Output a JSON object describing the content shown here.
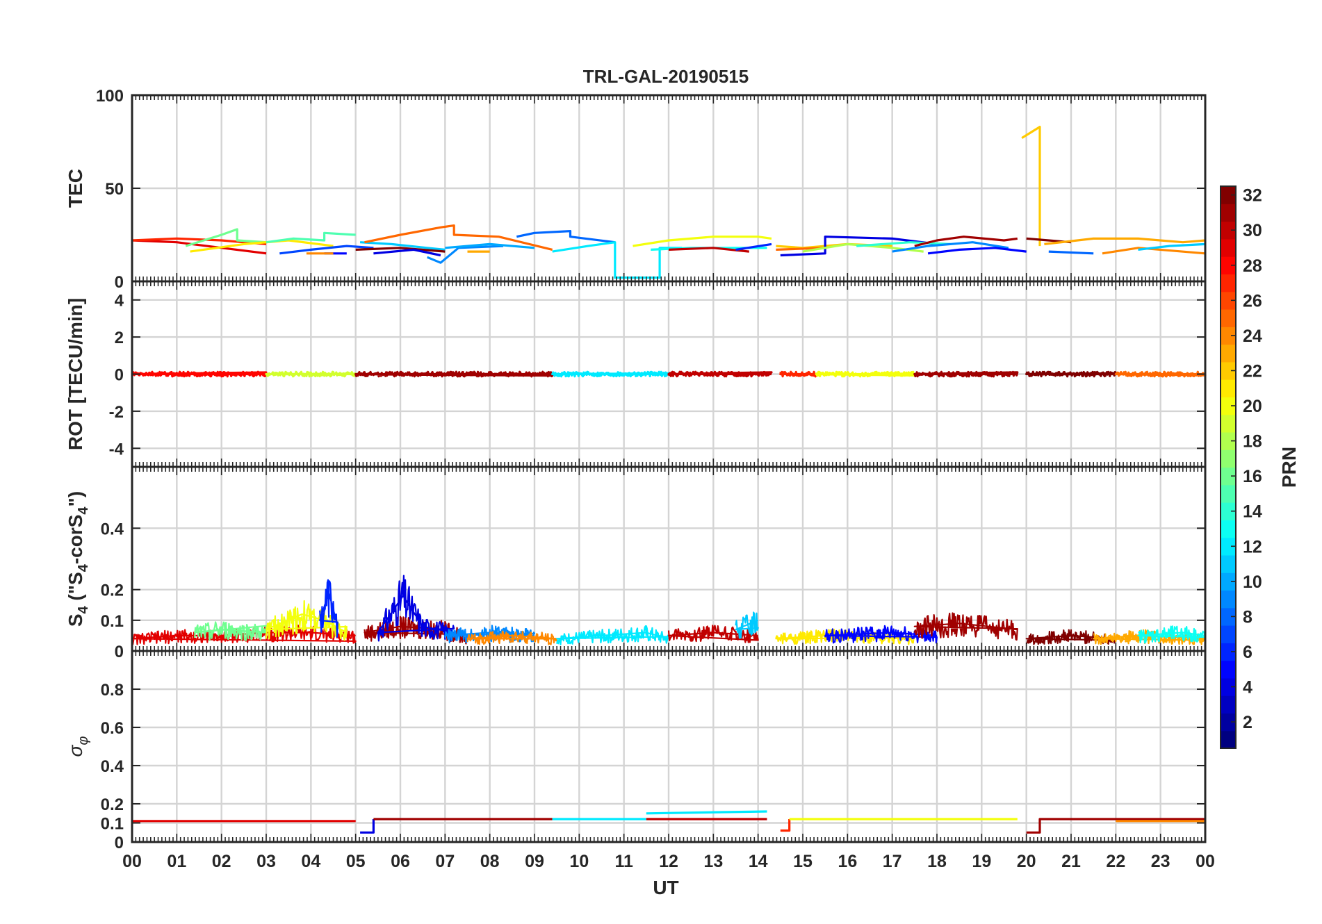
{
  "chart_data": {
    "type": "line",
    "title": "TRL-GAL-20190515",
    "x_axis": {
      "label": "UT",
      "range": [
        0,
        24
      ],
      "tick_labels": [
        "00",
        "01",
        "02",
        "03",
        "04",
        "05",
        "06",
        "07",
        "08",
        "09",
        "10",
        "11",
        "12",
        "13",
        "14",
        "15",
        "16",
        "17",
        "18",
        "19",
        "20",
        "21",
        "22",
        "23",
        "00"
      ],
      "grid": true
    },
    "panels": [
      {
        "ylabel": "TEC",
        "ylim": [
          0,
          100
        ],
        "yticks": [
          0,
          50,
          100
        ],
        "series": [
          {
            "prn": 29,
            "x": [
              0.0,
              1.0,
              3.0
            ],
            "y": [
              22,
              21,
              15
            ]
          },
          {
            "prn": 27,
            "x": [
              0.0,
              1.0,
              2.0,
              3.0
            ],
            "y": [
              22,
              23,
              22,
              20
            ]
          },
          {
            "prn": 16,
            "x": [
              1.2,
              2.0,
              2.35,
              2.35,
              3.0
            ],
            "y": [
              19,
              25,
              28,
              22,
              21
            ]
          },
          {
            "prn": 21,
            "x": [
              1.3,
              2.5,
              3.5,
              4.5
            ],
            "y": [
              16,
              20,
              22,
              19
            ]
          },
          {
            "prn": 15,
            "x": [
              3.0,
              3.6,
              4.3,
              4.3,
              5.0
            ],
            "y": [
              21,
              23,
              22,
              26,
              25
            ]
          },
          {
            "prn": 7,
            "x": [
              3.3,
              4.0,
              4.8,
              5.4
            ],
            "y": [
              15,
              17,
              19,
              18
            ]
          },
          {
            "prn": 5,
            "x": [
              4.3,
              4.8
            ],
            "y": [
              15,
              15
            ]
          },
          {
            "prn": 24,
            "x": [
              3.9,
              4.5
            ],
            "y": [
              15,
              15
            ]
          },
          {
            "prn": 11,
            "x": [
              5.1,
              5.8,
              6.6,
              7.0
            ],
            "y": [
              21,
              20,
              18,
              17
            ]
          },
          {
            "prn": 25,
            "x": [
              5.2,
              6.0,
              6.9,
              7.2,
              7.2,
              8.2,
              9.4
            ],
            "y": [
              21,
              25,
              29,
              30,
              25,
              24,
              17
            ]
          },
          {
            "prn": 32,
            "x": [
              5.0,
              6.0,
              7.0
            ],
            "y": [
              17,
              18,
              16
            ]
          },
          {
            "prn": 4,
            "x": [
              5.4,
              6.3,
              6.9
            ],
            "y": [
              15,
              17,
              14
            ]
          },
          {
            "prn": 9,
            "x": [
              6.6,
              6.9,
              7.3,
              8.3
            ],
            "y": [
              13,
              10,
              18,
              19
            ]
          },
          {
            "prn": 10,
            "x": [
              7.0,
              8.0,
              9.0
            ],
            "y": [
              18,
              20,
              18
            ]
          },
          {
            "prn": 23,
            "x": [
              7.5,
              8.0
            ],
            "y": [
              16,
              16
            ]
          },
          {
            "prn": 8,
            "x": [
              8.6,
              9.0,
              9.8,
              9.8,
              10.8
            ],
            "y": [
              24,
              26,
              27,
              24,
              21
            ]
          },
          {
            "prn": 12,
            "x": [
              9.4,
              10.2,
              10.8,
              10.8,
              11.8,
              11.8,
              12.3
            ],
            "y": [
              16,
              19,
              21,
              2,
              2,
              18,
              18
            ]
          },
          {
            "prn": 20,
            "x": [
              11.2,
              12.0,
              13.0,
              14.0,
              14.3
            ],
            "y": [
              19,
              22,
              24,
              24,
              23
            ]
          },
          {
            "prn": 13,
            "x": [
              11.6,
              12.5,
              13.3,
              14.2
            ],
            "y": [
              17,
              18,
              18,
              18
            ]
          },
          {
            "prn": 30,
            "x": [
              12.0,
              13.0,
              13.8
            ],
            "y": [
              17,
              18,
              16
            ]
          },
          {
            "prn": 6,
            "x": [
              13.5,
              14.3
            ],
            "y": [
              17,
              20
            ]
          },
          {
            "prn": 22,
            "x": [
              14.4,
              15.0,
              16.0,
              17.0
            ],
            "y": [
              19,
              18,
              20,
              19
            ]
          },
          {
            "prn": 25,
            "x": [
              14.4,
              15.5
            ],
            "y": [
              17,
              18
            ]
          },
          {
            "prn": 4,
            "x": [
              14.5,
              15.5,
              15.5,
              17.0,
              18.0
            ],
            "y": [
              14,
              15,
              24,
              23,
              20
            ]
          },
          {
            "prn": 18,
            "x": [
              15.0,
              16.0,
              17.0,
              17.7
            ],
            "y": [
              16,
              20,
              18,
              16
            ]
          },
          {
            "prn": 14,
            "x": [
              16.2,
              17.4,
              18.3
            ],
            "y": [
              19,
              21,
              20
            ]
          },
          {
            "prn": 31,
            "x": [
              17.5,
              18.0,
              18.6,
              19.5,
              19.8
            ],
            "y": [
              19,
              22,
              24,
              22,
              23
            ]
          },
          {
            "prn": 9,
            "x": [
              17.0,
              17.8,
              18.8,
              19.6
            ],
            "y": [
              16,
              19,
              21,
              18
            ]
          },
          {
            "prn": 5,
            "x": [
              17.8,
              18.5,
              19.3,
              20.0
            ],
            "y": [
              15,
              17,
              18,
              16
            ]
          },
          {
            "prn": 22,
            "x": [
              19.9,
              20.1,
              20.3,
              20.3
            ],
            "y": [
              77,
              80,
              83,
              19
            ]
          },
          {
            "prn": 32,
            "x": [
              20.0,
              21.0
            ],
            "y": [
              23,
              21
            ]
          },
          {
            "prn": 23,
            "x": [
              20.4,
              21.5,
              22.5,
              23.5,
              24.0
            ],
            "y": [
              20,
              23,
              23,
              21,
              22
            ]
          },
          {
            "prn": 24,
            "x": [
              21.7,
              22.5,
              24.0
            ],
            "y": [
              15,
              18,
              15
            ]
          },
          {
            "prn": 11,
            "x": [
              22.5,
              23.2,
              24.0
            ],
            "y": [
              17,
              19,
              20
            ]
          },
          {
            "prn": 8,
            "x": [
              20.5,
              21.5
            ],
            "y": [
              16,
              15
            ]
          }
        ]
      },
      {
        "ylabel": "ROT [TECU/min]",
        "ylim": [
          -5,
          5
        ],
        "yticks": [
          -4,
          -2,
          0,
          2,
          4
        ],
        "series": [
          {
            "prn": 28,
            "x": [
              0.0,
              3.0
            ],
            "y": [
              0.0,
              0.0
            ]
          },
          {
            "prn": 19,
            "x": [
              3.0,
              5.0
            ],
            "y": [
              0.0,
              0.0
            ]
          },
          {
            "prn": 31,
            "x": [
              5.0,
              9.4
            ],
            "y": [
              0.0,
              0.0
            ]
          },
          {
            "prn": 12,
            "x": [
              9.4,
              12.0
            ],
            "y": [
              0.0,
              0.0
            ]
          },
          {
            "prn": 30,
            "x": [
              12.0,
              14.3
            ],
            "y": [
              0.0,
              0.0
            ]
          },
          {
            "prn": 27,
            "x": [
              14.5,
              15.3
            ],
            "y": [
              0.0,
              0.0
            ]
          },
          {
            "prn": 20,
            "x": [
              15.3,
              17.5
            ],
            "y": [
              0.0,
              0.0
            ]
          },
          {
            "prn": 31,
            "x": [
              17.5,
              19.8
            ],
            "y": [
              0.0,
              0.0
            ]
          },
          {
            "prn": 32,
            "x": [
              20.0,
              22.0
            ],
            "y": [
              0.0,
              0.0
            ]
          },
          {
            "prn": 25,
            "x": [
              22.0,
              24.0
            ],
            "y": [
              0.0,
              0.0
            ]
          }
        ]
      },
      {
        "ylabel": "S4 (\"S4-corS4\")",
        "ylim": [
          0,
          0.6
        ],
        "yticks": [
          0,
          0.1,
          0.2,
          0.4
        ],
        "series": [
          {
            "prn": 29,
            "x": [
              0,
              1,
              2,
              3,
              4,
              5
            ],
            "y": [
              0.04,
              0.05,
              0.05,
              0.06,
              0.06,
              0.05
            ]
          },
          {
            "prn": 16,
            "x": [
              1.4,
              2.0,
              3.0
            ],
            "y": [
              0.06,
              0.07,
              0.06
            ]
          },
          {
            "prn": 20,
            "x": [
              3.0,
              3.8,
              4.3,
              4.8
            ],
            "y": [
              0.07,
              0.12,
              0.1,
              0.06
            ]
          },
          {
            "prn": 6,
            "x": [
              4.2,
              4.4,
              4.6
            ],
            "y": [
              0.1,
              0.19,
              0.08
            ]
          },
          {
            "prn": 31,
            "x": [
              5.2,
              6.0,
              7.0,
              7.5
            ],
            "y": [
              0.06,
              0.08,
              0.07,
              0.04
            ]
          },
          {
            "prn": 4,
            "x": [
              5.5,
              6.06,
              6.5,
              7.2
            ],
            "y": [
              0.06,
              0.18,
              0.08,
              0.06
            ]
          },
          {
            "prn": 9,
            "x": [
              7.0,
              8.0,
              9.0
            ],
            "y": [
              0.05,
              0.06,
              0.05
            ]
          },
          {
            "prn": 24,
            "x": [
              7.5,
              8.5,
              9.5
            ],
            "y": [
              0.04,
              0.05,
              0.04
            ]
          },
          {
            "prn": 12,
            "x": [
              9.5,
              10.5,
              11.5,
              12.0
            ],
            "y": [
              0.04,
              0.05,
              0.06,
              0.04
            ]
          },
          {
            "prn": 30,
            "x": [
              12.0,
              13.0,
              14.0
            ],
            "y": [
              0.05,
              0.06,
              0.05
            ]
          },
          {
            "prn": 11,
            "x": [
              13.5,
              14.0
            ],
            "y": [
              0.07,
              0.1
            ]
          },
          {
            "prn": 21,
            "x": [
              14.4,
              15.5,
              16.5,
              17.5
            ],
            "y": [
              0.04,
              0.05,
              0.05,
              0.04
            ]
          },
          {
            "prn": 5,
            "x": [
              15.5,
              17.0,
              18.0
            ],
            "y": [
              0.05,
              0.06,
              0.05
            ]
          },
          {
            "prn": 31,
            "x": [
              17.5,
              18.5,
              19.8
            ],
            "y": [
              0.08,
              0.09,
              0.07
            ]
          },
          {
            "prn": 32,
            "x": [
              20.0,
              21.0,
              22.0
            ],
            "y": [
              0.04,
              0.05,
              0.04
            ]
          },
          {
            "prn": 23,
            "x": [
              21.5,
              22.5,
              24.0
            ],
            "y": [
              0.04,
              0.05,
              0.04
            ]
          },
          {
            "prn": 13,
            "x": [
              22.5,
              23.5,
              24.0
            ],
            "y": [
              0.05,
              0.06,
              0.05
            ]
          }
        ]
      },
      {
        "ylabel": "σφ",
        "ylim": [
          0,
          1
        ],
        "yticks": [
          0,
          0.1,
          0.2,
          0.4,
          0.6,
          0.8
        ],
        "series": [
          {
            "prn": 29,
            "x": [
              0.0,
              5.0
            ],
            "y": [
              0.11,
              0.11
            ]
          },
          {
            "prn": 4,
            "x": [
              5.1,
              5.4,
              5.4
            ],
            "y": [
              0.05,
              0.05,
              0.12
            ]
          },
          {
            "prn": 31,
            "x": [
              5.4,
              9.4
            ],
            "y": [
              0.12,
              0.12
            ]
          },
          {
            "prn": 12,
            "x": [
              9.4,
              11.5
            ],
            "y": [
              0.12,
              0.12
            ]
          },
          {
            "prn": 12,
            "x": [
              11.5,
              14.2
            ],
            "y": [
              0.15,
              0.16
            ]
          },
          {
            "prn": 30,
            "x": [
              11.5,
              14.2
            ],
            "y": [
              0.12,
              0.12
            ]
          },
          {
            "prn": 27,
            "x": [
              14.5,
              14.7,
              14.7
            ],
            "y": [
              0.06,
              0.06,
              0.12
            ]
          },
          {
            "prn": 20,
            "x": [
              14.7,
              19.8
            ],
            "y": [
              0.12,
              0.12
            ]
          },
          {
            "prn": 31,
            "x": [
              20.0,
              20.3,
              20.3,
              24.0
            ],
            "y": [
              0.05,
              0.05,
              0.12,
              0.12
            ]
          },
          {
            "prn": 24,
            "x": [
              22.0,
              24.0
            ],
            "y": [
              0.11,
              0.11
            ]
          }
        ]
      }
    ],
    "colorbar": {
      "label": "PRN",
      "range": [
        1,
        32
      ],
      "colormap": "jet",
      "tick_labels": [
        "2",
        "4",
        "6",
        "8",
        "10",
        "12",
        "14",
        "16",
        "18",
        "20",
        "22",
        "24",
        "26",
        "28",
        "30",
        "32"
      ]
    }
  }
}
